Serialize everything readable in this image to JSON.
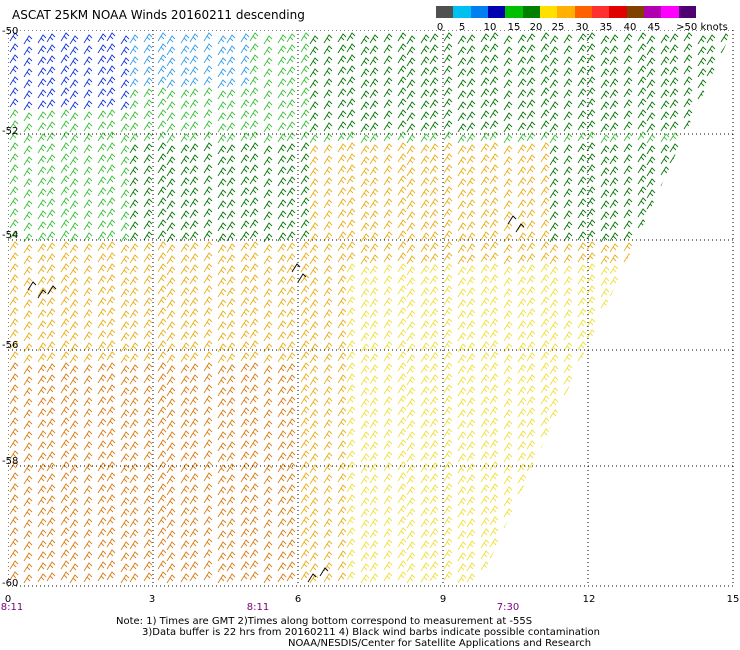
{
  "title": "ASCAT 25KM NOAA Winds 20160211 descending",
  "legend": {
    "colors": [
      "#505050",
      "#00c0f0",
      "#0080f0",
      "#0000b0",
      "#00c000",
      "#008000",
      "#ffe000",
      "#ffb000",
      "#ff6000",
      "#ff3030",
      "#e00000",
      "#804000",
      "#b000b0",
      "#ff00ff",
      "#500070"
    ],
    "labels": [
      "0",
      "5",
      "10",
      "15",
      "20",
      "25",
      "30",
      "35",
      "40",
      "45",
      ">50 knots"
    ]
  },
  "axes": {
    "lat_labels": [
      "-50",
      "-52",
      "-54",
      "-56",
      "-58",
      "-60"
    ],
    "lon_labels": [
      "0",
      "3",
      "6",
      "9",
      "12",
      "15"
    ],
    "time_labels": [
      "8:11",
      "8:11",
      "7:30"
    ]
  },
  "notes": {
    "line1": "Note: 1) Times are GMT 2)Times along bottom correspond to measurement at -55S",
    "line2": "3)Data buffer is 22 hrs from 20160211 4) Black wind barbs indicate possible contamination",
    "line3": "NOAA/NESDIS/Center for Satellite Applications and Research"
  },
  "colors": {
    "grid": "#000000",
    "barb_blue": "#1a3ad8",
    "barb_lightblue": "#3aa0e8",
    "barb_lightgreen": "#3fc03f",
    "barb_darkgreen": "#0b7a0b",
    "barb_yellow": "#f0e040",
    "barb_gold": "#e8b020",
    "barb_orange": "#d8801a",
    "barb_black": "#000000"
  }
}
